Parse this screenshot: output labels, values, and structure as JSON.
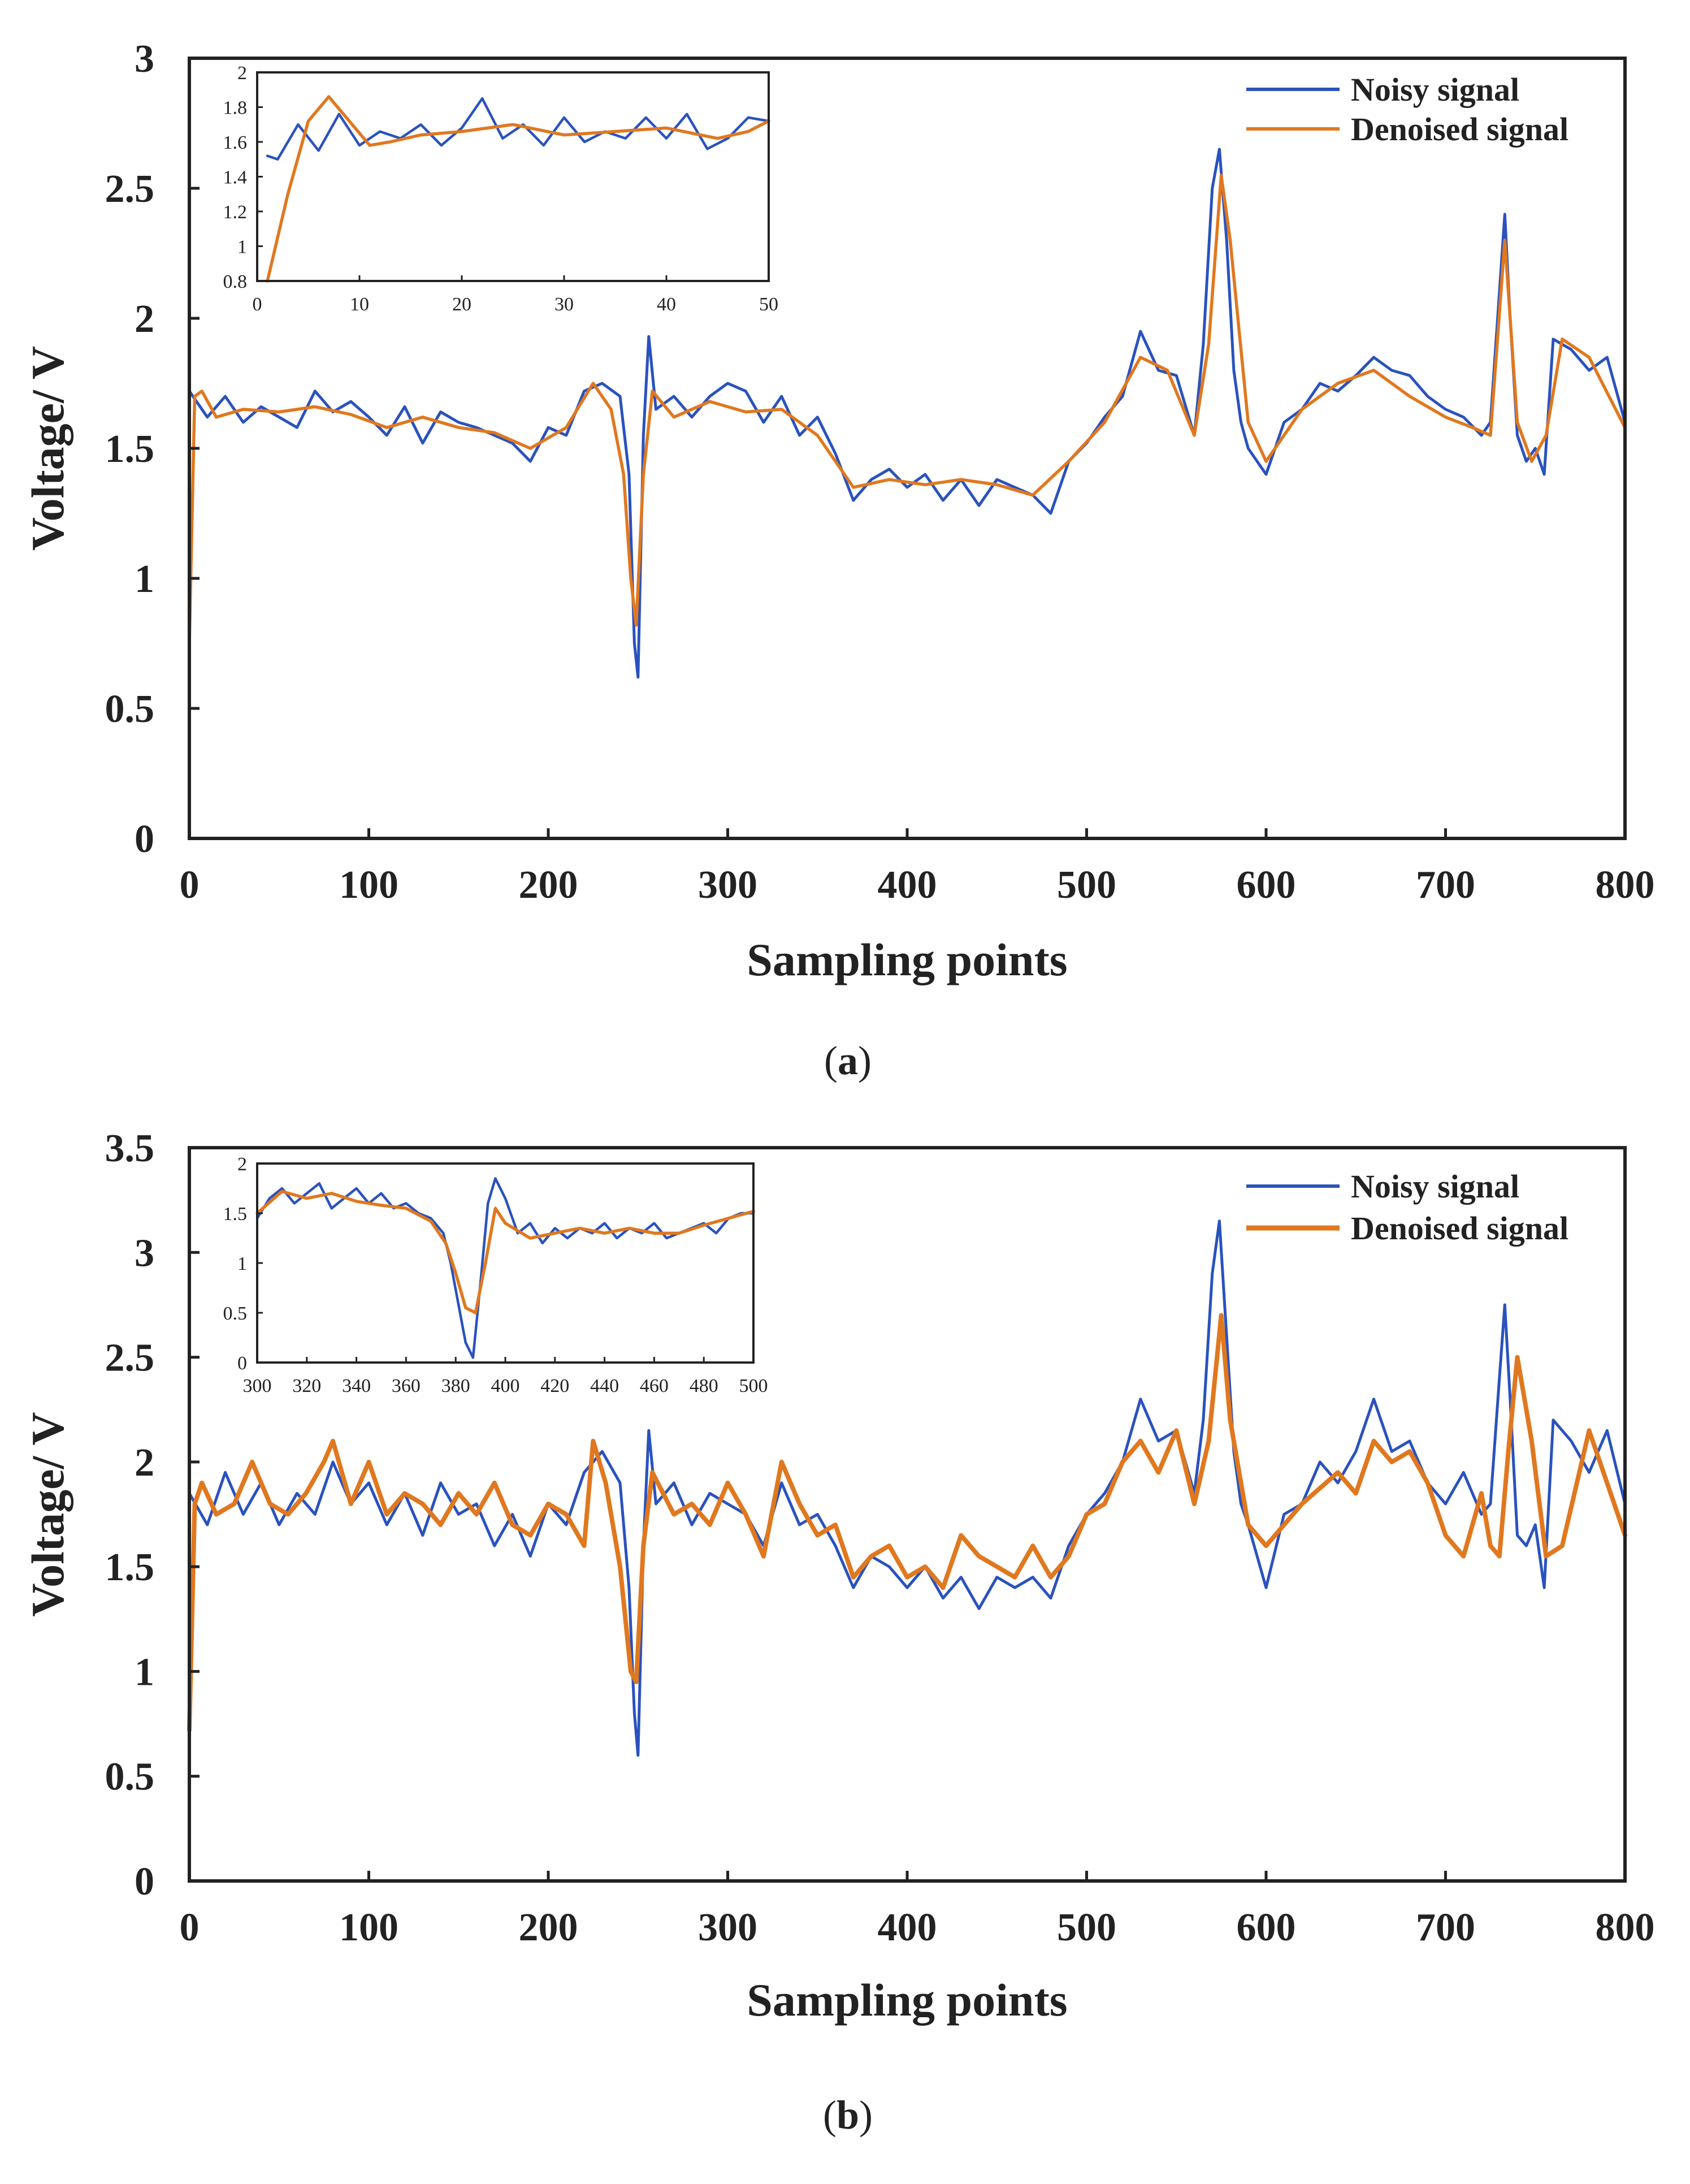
{
  "colors": {
    "noisy": "#2a52be",
    "denoised": "#e0781f",
    "axis": "#222222"
  },
  "chart_data": [
    {
      "type": "line",
      "panel_label": "a",
      "xlabel": "Sampling points",
      "ylabel": "Voltage/ V",
      "xlim": [
        0,
        800
      ],
      "ylim": [
        0,
        3
      ],
      "xticks": [
        0,
        100,
        200,
        300,
        400,
        500,
        600,
        700,
        800
      ],
      "yticks": [
        0,
        0.5,
        1,
        1.5,
        2,
        2.5,
        3
      ],
      "legend": {
        "position": "top-right",
        "entries": [
          "Noisy signal",
          "Denoised signal"
        ]
      },
      "series": [
        {
          "name": "Noisy signal",
          "color": "#2a52be",
          "x": [
            0,
            10,
            20,
            30,
            40,
            50,
            60,
            70,
            80,
            90,
            100,
            110,
            120,
            130,
            140,
            150,
            160,
            170,
            180,
            190,
            200,
            210,
            220,
            230,
            240,
            245,
            248,
            250,
            253,
            256,
            260,
            270,
            280,
            290,
            300,
            310,
            320,
            330,
            340,
            350,
            360,
            370,
            380,
            390,
            400,
            410,
            420,
            430,
            440,
            450,
            460,
            470,
            480,
            490,
            500,
            510,
            520,
            530,
            540,
            550,
            560,
            565,
            570,
            574,
            578,
            582,
            586,
            590,
            600,
            610,
            620,
            630,
            640,
            650,
            660,
            670,
            680,
            690,
            700,
            710,
            720,
            725,
            730,
            733,
            736,
            740,
            745,
            750,
            755,
            760,
            770,
            780,
            790,
            800
          ],
          "values": [
            1.72,
            1.62,
            1.7,
            1.6,
            1.66,
            1.62,
            1.58,
            1.72,
            1.64,
            1.68,
            1.62,
            1.55,
            1.66,
            1.52,
            1.64,
            1.6,
            1.58,
            1.55,
            1.52,
            1.45,
            1.58,
            1.55,
            1.72,
            1.75,
            1.7,
            1.4,
            0.75,
            0.62,
            1.55,
            1.93,
            1.65,
            1.7,
            1.62,
            1.7,
            1.75,
            1.72,
            1.6,
            1.7,
            1.55,
            1.62,
            1.48,
            1.3,
            1.38,
            1.42,
            1.35,
            1.4,
            1.3,
            1.38,
            1.28,
            1.38,
            1.35,
            1.32,
            1.25,
            1.45,
            1.52,
            1.62,
            1.7,
            1.95,
            1.8,
            1.78,
            1.55,
            1.9,
            2.5,
            2.65,
            2.3,
            1.8,
            1.6,
            1.5,
            1.4,
            1.6,
            1.65,
            1.75,
            1.72,
            1.78,
            1.85,
            1.8,
            1.78,
            1.7,
            1.65,
            1.62,
            1.55,
            1.6,
            2.1,
            2.4,
            2.0,
            1.55,
            1.45,
            1.5,
            1.4,
            1.92,
            1.88,
            1.8,
            1.85,
            1.6
          ]
        },
        {
          "name": "Denoised signal",
          "color": "#e0781f",
          "x": [
            0,
            3,
            7,
            15,
            30,
            50,
            70,
            90,
            110,
            130,
            150,
            170,
            190,
            210,
            225,
            235,
            242,
            246,
            249,
            253,
            258,
            270,
            290,
            310,
            330,
            350,
            370,
            390,
            410,
            430,
            450,
            470,
            490,
            510,
            530,
            545,
            560,
            568,
            575,
            580,
            590,
            600,
            620,
            640,
            660,
            680,
            700,
            715,
            725,
            733,
            740,
            748,
            756,
            765,
            780,
            800
          ],
          "values": [
            0.75,
            1.7,
            1.72,
            1.62,
            1.65,
            1.64,
            1.66,
            1.63,
            1.58,
            1.62,
            1.58,
            1.56,
            1.5,
            1.58,
            1.75,
            1.65,
            1.4,
            1.0,
            0.82,
            1.4,
            1.72,
            1.62,
            1.68,
            1.64,
            1.65,
            1.55,
            1.35,
            1.38,
            1.36,
            1.38,
            1.36,
            1.32,
            1.45,
            1.6,
            1.85,
            1.8,
            1.55,
            1.9,
            2.55,
            2.3,
            1.6,
            1.45,
            1.65,
            1.75,
            1.8,
            1.7,
            1.62,
            1.58,
            1.55,
            2.3,
            1.6,
            1.45,
            1.55,
            1.92,
            1.85,
            1.58
          ]
        }
      ],
      "inset": {
        "xlim": [
          0,
          50
        ],
        "ylim": [
          0.8,
          2
        ],
        "xticks": [
          0,
          10,
          20,
          30,
          40,
          50
        ],
        "yticks": [
          0.8,
          1,
          1.2,
          1.4,
          1.6,
          1.8,
          2
        ],
        "series": [
          {
            "name": "Noisy signal",
            "color": "#2a52be",
            "x": [
              1,
              2,
              4,
              6,
              8,
              10,
              12,
              14,
              16,
              18,
              20,
              22,
              24,
              26,
              28,
              30,
              32,
              34,
              36,
              38,
              40,
              42,
              44,
              46,
              48,
              50
            ],
            "values": [
              1.52,
              1.5,
              1.7,
              1.55,
              1.76,
              1.58,
              1.66,
              1.62,
              1.7,
              1.58,
              1.68,
              1.85,
              1.62,
              1.7,
              1.58,
              1.74,
              1.6,
              1.66,
              1.62,
              1.74,
              1.62,
              1.76,
              1.56,
              1.62,
              1.74,
              1.72
            ]
          },
          {
            "name": "Denoised signal",
            "color": "#e0781f",
            "x": [
              1,
              3,
              5,
              7,
              9,
              11,
              13,
              16,
              20,
              25,
              30,
              35,
              40,
              45,
              48,
              50
            ],
            "values": [
              0.8,
              1.3,
              1.72,
              1.86,
              1.72,
              1.58,
              1.6,
              1.64,
              1.66,
              1.7,
              1.64,
              1.66,
              1.68,
              1.62,
              1.66,
              1.72
            ]
          }
        ]
      }
    },
    {
      "type": "line",
      "panel_label": "b",
      "xlabel": "Sampling points",
      "ylabel": "Voltage/ V",
      "xlim": [
        0,
        800
      ],
      "ylim": [
        0,
        3.5
      ],
      "xticks": [
        0,
        100,
        200,
        300,
        400,
        500,
        600,
        700,
        800
      ],
      "yticks": [
        0,
        0.5,
        1,
        1.5,
        2,
        2.5,
        3,
        3.5
      ],
      "legend": {
        "position": "top-right",
        "entries": [
          "Noisy signal",
          "Denoised signal"
        ]
      },
      "series": [
        {
          "name": "Noisy signal",
          "color": "#2a52be",
          "x": [
            0,
            10,
            20,
            30,
            40,
            50,
            60,
            70,
            80,
            90,
            100,
            110,
            120,
            130,
            140,
            150,
            160,
            170,
            180,
            190,
            200,
            210,
            220,
            230,
            240,
            245,
            248,
            250,
            253,
            256,
            260,
            270,
            280,
            290,
            300,
            310,
            320,
            330,
            340,
            350,
            360,
            370,
            380,
            390,
            400,
            410,
            420,
            430,
            440,
            450,
            460,
            470,
            480,
            490,
            500,
            510,
            520,
            530,
            540,
            550,
            560,
            565,
            570,
            574,
            578,
            582,
            586,
            590,
            600,
            610,
            620,
            630,
            640,
            650,
            660,
            670,
            680,
            690,
            700,
            710,
            720,
            725,
            730,
            733,
            736,
            740,
            745,
            750,
            755,
            760,
            770,
            780,
            790,
            800
          ],
          "values": [
            1.85,
            1.7,
            1.95,
            1.75,
            1.9,
            1.7,
            1.85,
            1.75,
            2.0,
            1.8,
            1.9,
            1.7,
            1.85,
            1.65,
            1.9,
            1.75,
            1.8,
            1.6,
            1.75,
            1.55,
            1.8,
            1.7,
            1.95,
            2.05,
            1.9,
            1.4,
            0.8,
            0.6,
            1.6,
            2.15,
            1.8,
            1.9,
            1.7,
            1.85,
            1.8,
            1.75,
            1.6,
            1.9,
            1.7,
            1.75,
            1.6,
            1.4,
            1.55,
            1.5,
            1.4,
            1.5,
            1.35,
            1.45,
            1.3,
            1.45,
            1.4,
            1.45,
            1.35,
            1.6,
            1.75,
            1.85,
            2.0,
            2.3,
            2.1,
            2.15,
            1.85,
            2.2,
            2.9,
            3.15,
            2.6,
            2.05,
            1.8,
            1.7,
            1.4,
            1.75,
            1.8,
            2.0,
            1.9,
            2.05,
            2.3,
            2.05,
            2.1,
            1.9,
            1.8,
            1.95,
            1.75,
            1.8,
            2.4,
            2.75,
            2.3,
            1.65,
            1.6,
            1.7,
            1.4,
            2.2,
            2.1,
            1.95,
            2.15,
            1.8
          ]
        },
        {
          "name": "Denoised signal",
          "color": "#e0781f",
          "x": [
            0,
            3,
            7,
            15,
            25,
            35,
            45,
            55,
            65,
            75,
            80,
            90,
            100,
            110,
            120,
            130,
            140,
            150,
            160,
            170,
            180,
            190,
            200,
            210,
            220,
            225,
            232,
            240,
            246,
            249,
            253,
            258,
            270,
            280,
            290,
            300,
            310,
            320,
            330,
            340,
            350,
            360,
            370,
            380,
            390,
            400,
            410,
            420,
            430,
            440,
            450,
            460,
            470,
            480,
            490,
            500,
            510,
            520,
            530,
            540,
            550,
            560,
            568,
            575,
            580,
            590,
            600,
            610,
            620,
            640,
            650,
            660,
            670,
            680,
            690,
            700,
            710,
            720,
            725,
            730,
            735,
            740,
            748,
            756,
            765,
            780,
            790,
            800
          ],
          "values": [
            0.72,
            1.8,
            1.9,
            1.75,
            1.8,
            2.0,
            1.8,
            1.75,
            1.85,
            2.0,
            2.1,
            1.8,
            2.0,
            1.75,
            1.85,
            1.8,
            1.7,
            1.85,
            1.75,
            1.9,
            1.7,
            1.65,
            1.8,
            1.75,
            1.6,
            2.1,
            1.9,
            1.5,
            1.0,
            0.95,
            1.6,
            1.95,
            1.75,
            1.8,
            1.7,
            1.9,
            1.75,
            1.55,
            2.0,
            1.8,
            1.65,
            1.7,
            1.45,
            1.55,
            1.6,
            1.45,
            1.5,
            1.4,
            1.65,
            1.55,
            1.5,
            1.45,
            1.6,
            1.45,
            1.55,
            1.75,
            1.8,
            2.0,
            2.1,
            1.95,
            2.15,
            1.8,
            2.1,
            2.7,
            2.2,
            1.7,
            1.6,
            1.7,
            1.8,
            1.95,
            1.85,
            2.1,
            2.0,
            2.05,
            1.9,
            1.65,
            1.55,
            1.85,
            1.6,
            1.55,
            2.05,
            2.5,
            2.1,
            1.55,
            1.6,
            2.15,
            1.9,
            1.65
          ]
        }
      ],
      "inset": {
        "xlim": [
          300,
          500
        ],
        "ylim": [
          0,
          2
        ],
        "xticks": [
          300,
          320,
          340,
          360,
          380,
          400,
          420,
          440,
          460,
          480,
          500
        ],
        "yticks": [
          0,
          0.5,
          1,
          1.5,
          2
        ],
        "series": [
          {
            "name": "Noisy signal",
            "color": "#2a52be",
            "x": [
              300,
              305,
              310,
              315,
              320,
              325,
              330,
              335,
              340,
              345,
              350,
              355,
              360,
              365,
              370,
              375,
              378,
              381,
              384,
              387,
              390,
              393,
              396,
              400,
              405,
              410,
              415,
              420,
              425,
              430,
              435,
              440,
              445,
              450,
              455,
              460,
              465,
              470,
              475,
              480,
              485,
              490,
              495,
              500
            ],
            "values": [
              1.45,
              1.65,
              1.75,
              1.6,
              1.7,
              1.8,
              1.55,
              1.65,
              1.75,
              1.6,
              1.7,
              1.55,
              1.6,
              1.5,
              1.45,
              1.3,
              1.0,
              0.6,
              0.2,
              0.05,
              0.8,
              1.6,
              1.85,
              1.65,
              1.3,
              1.4,
              1.2,
              1.35,
              1.25,
              1.35,
              1.3,
              1.4,
              1.25,
              1.35,
              1.3,
              1.4,
              1.25,
              1.3,
              1.35,
              1.4,
              1.3,
              1.45,
              1.5,
              1.5
            ]
          },
          {
            "name": "Denoised signal",
            "color": "#e0781f",
            "x": [
              300,
              310,
              320,
              330,
              340,
              350,
              360,
              370,
              376,
              380,
              384,
              388,
              392,
              396,
              400,
              410,
              420,
              430,
              440,
              450,
              460,
              470,
              480,
              490,
              500
            ],
            "values": [
              1.5,
              1.72,
              1.65,
              1.7,
              1.62,
              1.58,
              1.55,
              1.42,
              1.2,
              0.9,
              0.55,
              0.5,
              1.0,
              1.55,
              1.4,
              1.25,
              1.3,
              1.35,
              1.3,
              1.35,
              1.3,
              1.3,
              1.38,
              1.45,
              1.52
            ]
          }
        ]
      }
    }
  ]
}
